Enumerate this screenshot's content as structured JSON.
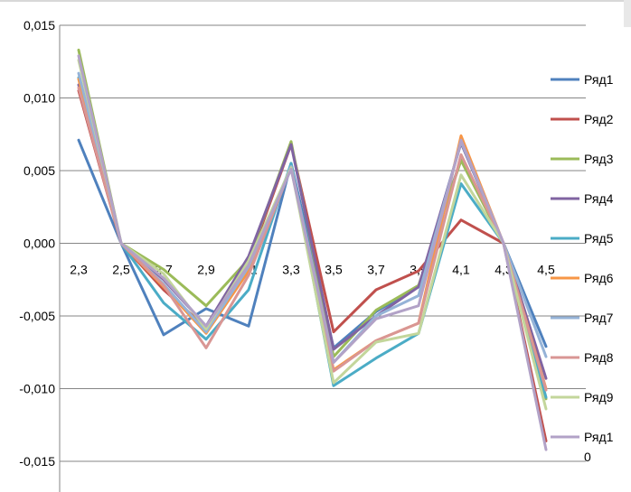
{
  "chart_data": {
    "type": "line",
    "x": [
      "2,3",
      "2,5",
      "2,7",
      "2,9",
      "3,1",
      "3,3",
      "3,5",
      "3,7",
      "3,9",
      "4,1",
      "4,3",
      "4,5"
    ],
    "ylim": [
      -0.015,
      0.015
    ],
    "yticks": [
      0.015,
      0.01,
      0.005,
      0,
      -0.005,
      -0.01,
      -0.015
    ],
    "ytick_labels": [
      "0,015",
      "0,010",
      "0,005",
      "0,000",
      "-0,005",
      "-0,010",
      "-0,015"
    ],
    "grid": "horizontal",
    "legend": "right",
    "series": [
      {
        "name": "Ряд1",
        "color": "#4f81bd",
        "values": [
          0.0071,
          0.0,
          -0.0063,
          -0.0045,
          -0.0057,
          0.0055,
          -0.0072,
          -0.0047,
          -0.003,
          0.0058,
          0.0,
          -0.0071
        ]
      },
      {
        "name": "Ряд2",
        "color": "#c0504d",
        "values": [
          0.0105,
          0.0,
          -0.0032,
          -0.0058,
          -0.0013,
          0.0068,
          -0.0061,
          -0.0032,
          -0.0019,
          0.0016,
          0.0,
          -0.0136
        ]
      },
      {
        "name": "Ряд3",
        "color": "#9bbb59",
        "values": [
          0.0133,
          0.0,
          -0.0018,
          -0.0043,
          -0.0011,
          0.007,
          -0.0078,
          -0.0046,
          -0.0029,
          0.0057,
          0.0,
          -0.0107
        ]
      },
      {
        "name": "Ряд4",
        "color": "#8064a2",
        "values": [
          0.0109,
          0.0,
          -0.0025,
          -0.0057,
          -0.0009,
          0.0068,
          -0.0073,
          -0.005,
          -0.003,
          0.0069,
          0.0,
          -0.0093
        ]
      },
      {
        "name": "Ряд5",
        "color": "#4bacc6",
        "values": [
          0.0114,
          0.0,
          -0.0041,
          -0.0066,
          -0.0032,
          0.0055,
          -0.0098,
          -0.0079,
          -0.0062,
          0.0041,
          0.0,
          -0.0106
        ]
      },
      {
        "name": "Ряд6",
        "color": "#f79646",
        "values": [
          0.0113,
          0.0,
          -0.003,
          -0.0062,
          -0.0019,
          0.0052,
          -0.0087,
          -0.0067,
          -0.0055,
          0.0074,
          0.0,
          -0.01
        ]
      },
      {
        "name": "Ряд7",
        "color": "#95b3d7",
        "values": [
          0.0117,
          0.0,
          -0.0028,
          -0.0061,
          -0.0016,
          0.0053,
          -0.0082,
          -0.005,
          -0.0036,
          0.007,
          0.0,
          -0.0078
        ]
      },
      {
        "name": "Ряд8",
        "color": "#d99694",
        "values": [
          0.0107,
          0.0,
          -0.0029,
          -0.0072,
          -0.0022,
          0.0052,
          -0.0088,
          -0.0067,
          -0.0055,
          0.0061,
          0.0,
          -0.0101
        ]
      },
      {
        "name": "Ряд9",
        "color": "#c3d69b",
        "values": [
          0.0126,
          0.0,
          -0.0021,
          -0.0059,
          -0.0012,
          0.0052,
          -0.0096,
          -0.0068,
          -0.0062,
          0.0047,
          0.0,
          -0.0114
        ]
      },
      {
        "name": "Ряд10",
        "color": "#b2a2c7",
        "values": [
          0.0129,
          0.0,
          -0.0024,
          -0.0057,
          -0.0015,
          0.0051,
          -0.0082,
          -0.0052,
          -0.0043,
          0.0071,
          0.0,
          -0.0142
        ]
      }
    ]
  }
}
